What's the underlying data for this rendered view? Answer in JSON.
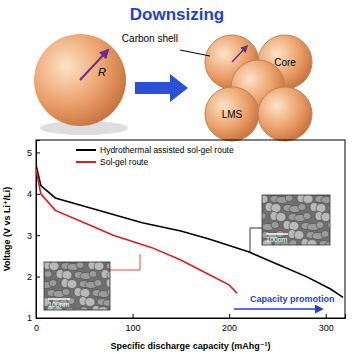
{
  "diagram": {
    "title": "Downsizing",
    "large_radius": "R",
    "shell": "Carbon shell",
    "core": "Core",
    "lms": "LMS"
  },
  "chart_data": {
    "type": "line",
    "x_label": "Specific discharge capacity (mAhg⁻¹)",
    "y_label": "Voltage (V vs Li⁺/Li)",
    "xlim": [
      0,
      320
    ],
    "xticks": [
      0,
      100,
      200,
      300
    ],
    "ylim": [
      1,
      5.3
    ],
    "yticks": [
      1,
      2,
      3,
      4,
      5
    ],
    "legend": "upper left",
    "series": [
      {
        "name": "Hydrothermal assisted sol-gel route",
        "color": "#000000",
        "x": [
          0,
          5,
          20,
          50,
          80,
          110,
          150,
          180,
          220,
          250,
          280,
          305,
          318
        ],
        "values": [
          4.7,
          4.2,
          3.9,
          3.7,
          3.5,
          3.3,
          3.1,
          2.9,
          2.6,
          2.3,
          2.0,
          1.7,
          1.5
        ]
      },
      {
        "name": "Sol-gel route",
        "color": "#e31a1c",
        "x": [
          0,
          5,
          20,
          50,
          80,
          120,
          150,
          175,
          200,
          208
        ],
        "values": [
          4.6,
          4.0,
          3.6,
          3.3,
          3.0,
          2.7,
          2.4,
          2.1,
          1.8,
          1.6
        ]
      }
    ],
    "annotations": [
      {
        "text": "Capacity promotion",
        "color": "#1f3fd6"
      }
    ],
    "inset_labels": [
      "100nm",
      "100nm"
    ]
  }
}
